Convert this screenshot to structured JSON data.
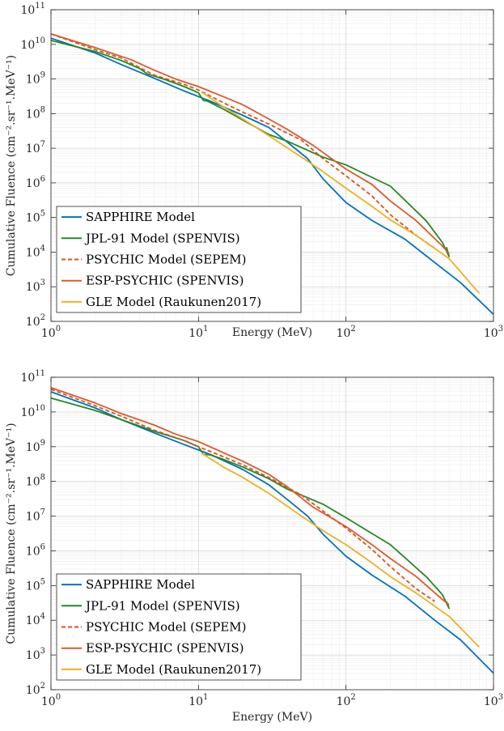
{
  "charts": [
    {
      "type": "line",
      "xscale": "log",
      "yscale": "log",
      "xlabel": "Energy (MeV)",
      "ylabel": "Cumulative Fluence (cm⁻².sr⁻¹.MeV⁻¹)",
      "xlim": [
        1,
        1000
      ],
      "ylim": [
        100,
        100000000000
      ],
      "x_tick_labels": [
        {
          "value": 1,
          "mantissa": "10",
          "exp": "0"
        },
        {
          "value": 10,
          "mantissa": "10",
          "exp": "1"
        },
        {
          "value": 100,
          "mantissa": "10",
          "exp": "2"
        },
        {
          "value": 1000,
          "mantissa": "10",
          "exp": "3"
        }
      ],
      "y_tick_labels": [
        {
          "value": 100,
          "mantissa": "10",
          "exp": "2"
        },
        {
          "value": 1000,
          "mantissa": "10",
          "exp": "3"
        },
        {
          "value": 10000,
          "mantissa": "10",
          "exp": "4"
        },
        {
          "value": 100000,
          "mantissa": "10",
          "exp": "5"
        },
        {
          "value": 1000000,
          "mantissa": "10",
          "exp": "6"
        },
        {
          "value": 10000000,
          "mantissa": "10",
          "exp": "7"
        },
        {
          "value": 100000000,
          "mantissa": "10",
          "exp": "8"
        },
        {
          "value": 1000000000,
          "mantissa": "10",
          "exp": "9"
        },
        {
          "value": 10000000000,
          "mantissa": "10",
          "exp": "10"
        },
        {
          "value": 100000000000,
          "mantissa": "10",
          "exp": "11"
        }
      ],
      "grid": true,
      "legend_position": "bottom-left",
      "series": [
        {
          "name": "SAPPHIRE Model",
          "color": "#0072BD",
          "dash": "solid",
          "x": [
            1,
            2,
            3,
            5,
            8,
            12,
            20,
            30,
            40,
            55,
            70,
            100,
            150,
            250,
            400,
            600,
            1000
          ],
          "y": [
            15000000000,
            5600000000,
            2600000000,
            1050000000,
            450000000,
            230000000,
            89000000,
            40000000,
            15000000,
            5000000,
            1300000,
            270000,
            82000,
            24000,
            5000,
            1300,
            160
          ]
        },
        {
          "name": "JPL-91 Model (SPENVIS)",
          "color": "#218A21",
          "dash": "solid",
          "x": [
            1,
            2,
            3,
            4,
            4.5,
            6,
            8,
            10,
            10.8,
            11.5,
            15,
            20,
            30,
            40,
            70,
            100,
            200,
            350,
            450,
            500,
            480
          ],
          "y": [
            13000000000,
            6200000000,
            3400000000,
            2000000000,
            1400000000,
            950000000,
            600000000,
            400000000,
            240000000,
            230000000,
            130000000,
            65000000,
            25000000,
            16000000,
            5500000,
            3300000,
            800000,
            80000,
            19000,
            7500,
            14000
          ]
        },
        {
          "name": "PSYCHIC Model (SEPEM)",
          "color": "#D95319",
          "dash": "dashed",
          "x": [
            1,
            2,
            3,
            5,
            8,
            10,
            15,
            20,
            30,
            50,
            70,
            100,
            150,
            200,
            300,
            400
          ],
          "y": [
            20000000000,
            7000000000,
            4000000000,
            1300000000,
            700000000,
            480000000,
            200000000,
            110000000,
            50000000,
            17000000,
            5000000,
            1600000,
            420000,
            120000,
            30000,
            13000
          ]
        },
        {
          "name": "ESP-PSYCHIC (SPENVIS)",
          "color": "#DC5A2D",
          "dash": "solid",
          "x": [
            1,
            2,
            3.5,
            5,
            7,
            10,
            15,
            20,
            30,
            40,
            60,
            100,
            150,
            200,
            300,
            450,
            500
          ],
          "y": [
            20000000000,
            8000000000,
            3600000000,
            1800000000,
            1000000000,
            600000000,
            300000000,
            180000000,
            70000000,
            35000000,
            12000000,
            2500000,
            900000,
            300000,
            80000,
            15000,
            9000
          ]
        },
        {
          "name": "GLE Model (Raukunen2017)",
          "color": "#EDB120",
          "dash": "solid",
          "x": [
            10.5,
            15,
            20,
            30,
            50,
            70,
            100,
            150,
            200,
            300,
            500,
            800
          ],
          "y": [
            420000000,
            150000000,
            70000000,
            23000000,
            5500000,
            2100000,
            700000,
            210000,
            85000,
            30000,
            6500,
            650
          ]
        }
      ]
    },
    {
      "type": "line",
      "xscale": "log",
      "yscale": "log",
      "xlabel": "Energy (MeV)",
      "ylabel": "Cumulative Fluence (cm⁻².sr⁻¹.MeV⁻¹)",
      "xlim": [
        1,
        1000
      ],
      "ylim": [
        100,
        100000000000
      ],
      "x_tick_labels": [
        {
          "value": 1,
          "mantissa": "10",
          "exp": "0"
        },
        {
          "value": 10,
          "mantissa": "10",
          "exp": "1"
        },
        {
          "value": 100,
          "mantissa": "10",
          "exp": "2"
        },
        {
          "value": 1000,
          "mantissa": "10",
          "exp": "3"
        }
      ],
      "y_tick_labels": [
        {
          "value": 100,
          "mantissa": "10",
          "exp": "2"
        },
        {
          "value": 1000,
          "mantissa": "10",
          "exp": "3"
        },
        {
          "value": 10000,
          "mantissa": "10",
          "exp": "4"
        },
        {
          "value": 100000,
          "mantissa": "10",
          "exp": "5"
        },
        {
          "value": 1000000,
          "mantissa": "10",
          "exp": "6"
        },
        {
          "value": 10000000,
          "mantissa": "10",
          "exp": "7"
        },
        {
          "value": 100000000,
          "mantissa": "10",
          "exp": "8"
        },
        {
          "value": 1000000000,
          "mantissa": "10",
          "exp": "9"
        },
        {
          "value": 10000000000,
          "mantissa": "10",
          "exp": "10"
        },
        {
          "value": 100000000000,
          "mantissa": "10",
          "exp": "11"
        }
      ],
      "grid": true,
      "legend_position": "bottom-left",
      "series": [
        {
          "name": "SAPPHIRE Model",
          "color": "#0072BD",
          "dash": "solid",
          "x": [
            1,
            2,
            3,
            5,
            8,
            12,
            20,
            30,
            40,
            55,
            70,
            100,
            150,
            250,
            400,
            600,
            1000
          ],
          "y": [
            38000000000,
            13000000000,
            6000000000,
            2500000000,
            1150000000,
            600000000,
            220000000,
            80000000,
            30000000,
            10000000,
            3000000,
            700000,
            200000,
            50000,
            10000,
            2700,
            300
          ]
        },
        {
          "name": "JPL-91 Model (SPENVIS)",
          "color": "#218A21",
          "dash": "solid",
          "x": [
            1,
            2,
            3,
            5,
            8,
            10,
            10.8,
            12,
            15,
            20,
            30,
            40,
            70,
            100,
            200,
            350,
            450,
            500,
            480
          ],
          "y": [
            25000000000,
            11000000000,
            6000000000,
            2800000000,
            1500000000,
            1000000000,
            600000000,
            580000000,
            420000000,
            260000000,
            120000000,
            60000000,
            22000000,
            9000000,
            1500000,
            180000,
            55000,
            22000,
            35000
          ]
        },
        {
          "name": "PSYCHIC Model (SEPEM)",
          "color": "#D95319",
          "dash": "dashed",
          "x": [
            1,
            2,
            3,
            5,
            8,
            10,
            15,
            20,
            30,
            50,
            70,
            100,
            150,
            200,
            300,
            400
          ],
          "y": [
            45000000000,
            15000000000,
            7500000000,
            3000000000,
            1500000000,
            1000000000,
            500000000,
            300000000,
            130000000,
            40000000,
            14000000,
            4500000,
            1100000,
            350000,
            80000,
            35000
          ]
        },
        {
          "name": "ESP-PSYCHIC (SPENVIS)",
          "color": "#DC5A2D",
          "dash": "solid",
          "x": [
            1,
            2,
            3,
            5,
            7,
            10,
            15,
            20,
            30,
            40,
            60,
            100,
            150,
            200,
            300,
            450,
            500
          ],
          "y": [
            50000000000,
            18000000000,
            9000000000,
            4200000000,
            2300000000,
            1400000000,
            650000000,
            380000000,
            160000000,
            70000000,
            18000000,
            5000000,
            1500000,
            600000,
            180000,
            40000,
            28000
          ]
        },
        {
          "name": "GLE Model (Raukunen2017)",
          "color": "#EDB120",
          "dash": "solid",
          "x": [
            10.5,
            15,
            20,
            30,
            50,
            70,
            100,
            150,
            200,
            300,
            500,
            800
          ],
          "y": [
            650000000,
            250000000,
            130000000,
            45000000,
            10000000,
            3800000,
            1500000,
            450000,
            180000,
            60000,
            13000,
            1700
          ]
        }
      ]
    }
  ]
}
